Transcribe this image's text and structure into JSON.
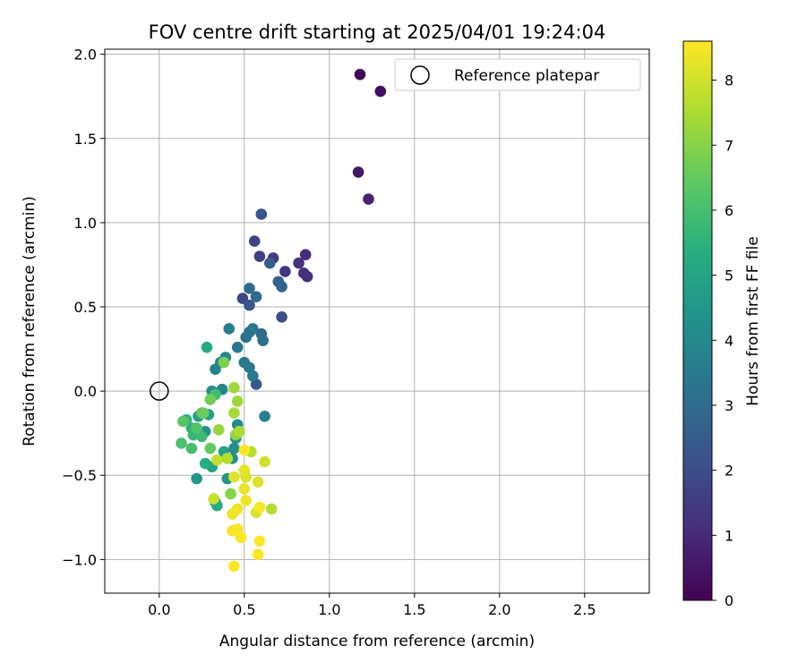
{
  "chart_data": {
    "type": "scatter",
    "title": "FOV centre drift starting at 2025/04/01 19:24:04",
    "xlabel": "Angular distance from reference (arcmin)",
    "ylabel": "Rotation from reference (arcmin)",
    "xlim": [
      -0.32,
      2.88
    ],
    "ylim": [
      -1.2,
      2.03
    ],
    "x_ticks": [
      0.0,
      0.5,
      1.0,
      1.5,
      2.0,
      2.5
    ],
    "x_tick_labels": [
      "0.0",
      "0.5",
      "1.0",
      "1.5",
      "2.0",
      "2.5"
    ],
    "y_ticks": [
      -1.0,
      -0.5,
      0.0,
      0.5,
      1.0,
      1.5,
      2.0
    ],
    "y_tick_labels": [
      "−1.0",
      "−0.5",
      "0.0",
      "0.5",
      "1.0",
      "1.5",
      "2.0"
    ],
    "grid": true,
    "legend": {
      "placement": "top-right",
      "entries": [
        {
          "label": "Reference platepar",
          "marker": "open-circle"
        }
      ]
    },
    "reference_point": {
      "x": 0.0,
      "y": 0.0
    },
    "colorbar": {
      "label": "Hours from first FF file",
      "colormap": "viridis",
      "range": [
        0,
        8.6
      ],
      "ticks": [
        0,
        1,
        2,
        3,
        4,
        5,
        6,
        7,
        8
      ],
      "tick_labels": [
        "0",
        "1",
        "2",
        "3",
        "4",
        "5",
        "6",
        "7",
        "8"
      ]
    },
    "series": [
      {
        "points": [
          {
            "x": 1.18,
            "y": 1.88,
            "c": 0.1
          },
          {
            "x": 1.3,
            "y": 1.78,
            "c": 0.3
          },
          {
            "x": 1.17,
            "y": 1.3,
            "c": 0.5
          },
          {
            "x": 1.23,
            "y": 1.14,
            "c": 0.8
          },
          {
            "x": 0.86,
            "y": 0.81,
            "c": 1.0
          },
          {
            "x": 0.87,
            "y": 0.68,
            "c": 1.1
          },
          {
            "x": 0.85,
            "y": 0.7,
            "c": 1.2
          },
          {
            "x": 0.82,
            "y": 0.76,
            "c": 1.3
          },
          {
            "x": 0.74,
            "y": 0.71,
            "c": 1.4
          },
          {
            "x": 0.67,
            "y": 0.79,
            "c": 1.5
          },
          {
            "x": 0.59,
            "y": 0.8,
            "c": 1.6
          },
          {
            "x": 0.56,
            "y": 0.89,
            "c": 1.7
          },
          {
            "x": 0.49,
            "y": 0.55,
            "c": 1.8
          },
          {
            "x": 0.72,
            "y": 0.44,
            "c": 2.0
          },
          {
            "x": 0.6,
            "y": 1.05,
            "c": 2.2
          },
          {
            "x": 0.53,
            "y": 0.51,
            "c": 2.3
          },
          {
            "x": 0.57,
            "y": 0.04,
            "c": 2.4
          },
          {
            "x": 0.65,
            "y": 0.76,
            "c": 2.6
          },
          {
            "x": 0.7,
            "y": 0.65,
            "c": 2.7
          },
          {
            "x": 0.72,
            "y": 0.62,
            "c": 2.8
          },
          {
            "x": 0.57,
            "y": 0.56,
            "c": 2.9
          },
          {
            "x": 0.53,
            "y": 0.61,
            "c": 3.0
          },
          {
            "x": 0.6,
            "y": 0.34,
            "c": 3.0
          },
          {
            "x": 0.61,
            "y": 0.3,
            "c": 3.1
          },
          {
            "x": 0.51,
            "y": 0.32,
            "c": 3.2
          },
          {
            "x": 0.53,
            "y": 0.35,
            "c": 3.2
          },
          {
            "x": 0.55,
            "y": 0.37,
            "c": 3.3
          },
          {
            "x": 0.46,
            "y": 0.26,
            "c": 3.4
          },
          {
            "x": 0.5,
            "y": 0.17,
            "c": 3.4
          },
          {
            "x": 0.53,
            "y": 0.14,
            "c": 3.5
          },
          {
            "x": 0.55,
            "y": 0.09,
            "c": 3.5
          },
          {
            "x": 0.41,
            "y": 0.37,
            "c": 3.6
          },
          {
            "x": 0.62,
            "y": -0.15,
            "c": 3.7
          },
          {
            "x": 0.33,
            "y": 0.13,
            "c": 3.8
          },
          {
            "x": 0.36,
            "y": 0.17,
            "c": 3.9
          },
          {
            "x": 0.39,
            "y": 0.2,
            "c": 4.0
          },
          {
            "x": 0.37,
            "y": 0.01,
            "c": 4.0
          },
          {
            "x": 0.31,
            "y": 0.0,
            "c": 4.1
          },
          {
            "x": 0.46,
            "y": -0.2,
            "c": 4.1
          },
          {
            "x": 0.44,
            "y": -0.34,
            "c": 4.2
          },
          {
            "x": 0.45,
            "y": -0.28,
            "c": 4.2
          },
          {
            "x": 0.43,
            "y": -0.4,
            "c": 4.3
          },
          {
            "x": 0.27,
            "y": -0.24,
            "c": 4.3
          },
          {
            "x": 0.4,
            "y": -0.52,
            "c": 4.4
          },
          {
            "x": 0.22,
            "y": -0.52,
            "c": 4.5
          },
          {
            "x": 0.33,
            "y": -0.66,
            "c": 4.6
          },
          {
            "x": 0.29,
            "y": -0.14,
            "c": 4.7
          },
          {
            "x": 0.23,
            "y": -0.15,
            "c": 4.8
          },
          {
            "x": 0.38,
            "y": -0.36,
            "c": 4.9
          },
          {
            "x": 0.31,
            "y": -0.45,
            "c": 5.0
          },
          {
            "x": 0.28,
            "y": 0.26,
            "c": 5.2
          },
          {
            "x": 0.34,
            "y": -0.68,
            "c": 5.3
          },
          {
            "x": 0.27,
            "y": -0.43,
            "c": 5.4
          },
          {
            "x": 0.19,
            "y": -0.22,
            "c": 5.5
          },
          {
            "x": 0.16,
            "y": -0.17,
            "c": 5.6
          },
          {
            "x": 0.2,
            "y": -0.26,
            "c": 5.7
          },
          {
            "x": 0.25,
            "y": -0.27,
            "c": 5.8
          },
          {
            "x": 0.33,
            "y": -0.02,
            "c": 5.9
          },
          {
            "x": 0.19,
            "y": -0.34,
            "c": 6.0
          },
          {
            "x": 0.13,
            "y": -0.31,
            "c": 6.1
          },
          {
            "x": 0.22,
            "y": -0.22,
            "c": 6.2
          },
          {
            "x": 0.14,
            "y": -0.18,
            "c": 6.3
          },
          {
            "x": 0.25,
            "y": -0.13,
            "c": 6.4
          },
          {
            "x": 0.3,
            "y": -0.34,
            "c": 6.5
          },
          {
            "x": 0.26,
            "y": -0.13,
            "c": 6.6
          },
          {
            "x": 0.3,
            "y": -0.05,
            "c": 6.7
          },
          {
            "x": 0.38,
            "y": 0.17,
            "c": 6.9
          },
          {
            "x": 0.42,
            "y": -0.61,
            "c": 7.0
          },
          {
            "x": 0.45,
            "y": -0.26,
            "c": 7.1
          },
          {
            "x": 0.35,
            "y": -0.23,
            "c": 7.2
          },
          {
            "x": 0.44,
            "y": 0.02,
            "c": 7.3
          },
          {
            "x": 0.46,
            "y": -0.06,
            "c": 7.3
          },
          {
            "x": 0.44,
            "y": -0.13,
            "c": 7.4
          },
          {
            "x": 0.47,
            "y": -0.24,
            "c": 7.5
          },
          {
            "x": 0.66,
            "y": -0.7,
            "c": 7.6
          },
          {
            "x": 0.4,
            "y": -0.4,
            "c": 7.6
          },
          {
            "x": 0.54,
            "y": -0.36,
            "c": 7.7
          },
          {
            "x": 0.34,
            "y": -0.41,
            "c": 7.8
          },
          {
            "x": 0.32,
            "y": -0.64,
            "c": 7.9
          },
          {
            "x": 0.62,
            "y": -0.42,
            "c": 8.0
          },
          {
            "x": 0.57,
            "y": -0.72,
            "c": 8.1
          },
          {
            "x": 0.51,
            "y": -0.51,
            "c": 8.1
          },
          {
            "x": 0.44,
            "y": -0.51,
            "c": 8.2
          },
          {
            "x": 0.58,
            "y": -0.54,
            "c": 8.2
          },
          {
            "x": 0.5,
            "y": -0.47,
            "c": 8.3
          },
          {
            "x": 0.5,
            "y": -0.58,
            "c": 8.3
          },
          {
            "x": 0.51,
            "y": -0.65,
            "c": 8.4
          },
          {
            "x": 0.46,
            "y": -0.7,
            "c": 8.4
          },
          {
            "x": 0.43,
            "y": -0.73,
            "c": 8.4
          },
          {
            "x": 0.59,
            "y": -0.69,
            "c": 8.5
          },
          {
            "x": 0.46,
            "y": -0.82,
            "c": 8.5
          },
          {
            "x": 0.43,
            "y": -0.83,
            "c": 8.5
          },
          {
            "x": 0.48,
            "y": -0.87,
            "c": 8.6
          },
          {
            "x": 0.59,
            "y": -0.89,
            "c": 8.6
          },
          {
            "x": 0.58,
            "y": -0.97,
            "c": 8.6
          },
          {
            "x": 0.44,
            "y": -1.04,
            "c": 8.6
          },
          {
            "x": 0.5,
            "y": -0.35,
            "c": 8.6
          }
        ]
      }
    ]
  }
}
